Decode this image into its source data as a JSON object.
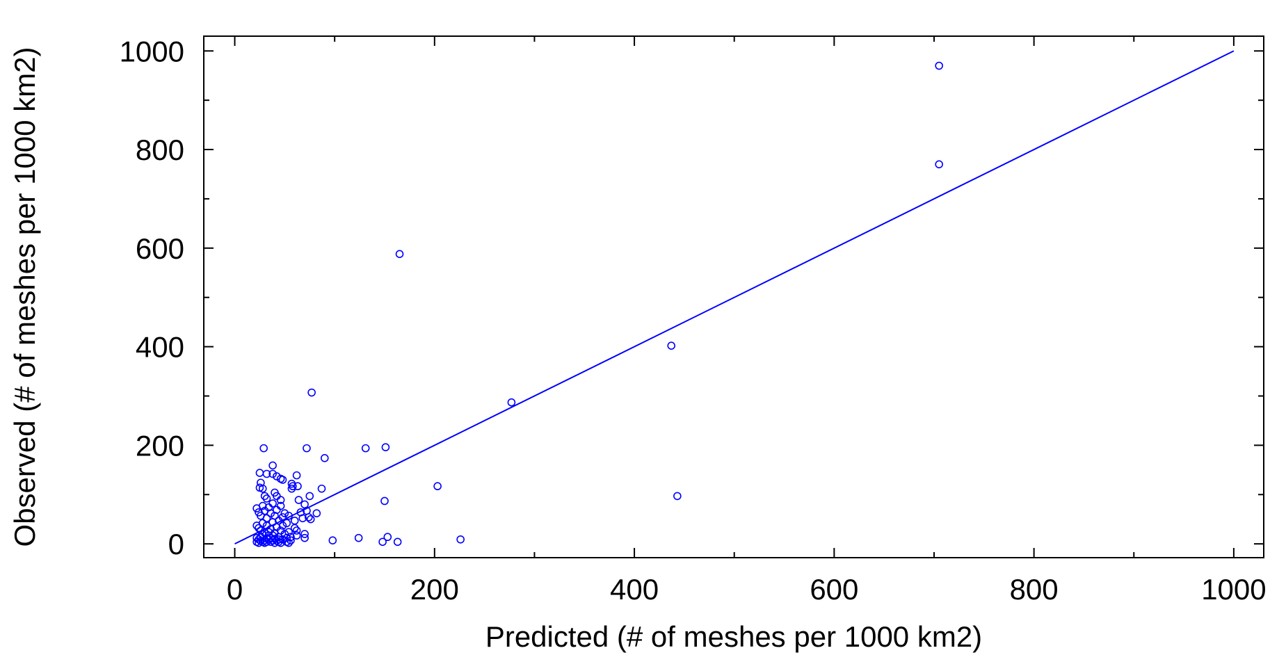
{
  "chart_data": {
    "type": "scatter",
    "title": "",
    "xlabel": "Predicted (# of meshes per 1000 km2)",
    "ylabel": "Observed (# of meshes per 1000 km2)",
    "xlim": [
      -31,
      1030
    ],
    "ylim": [
      -28,
      1030
    ],
    "xticks": [
      0,
      200,
      400,
      600,
      800,
      1000
    ],
    "yticks": [
      0,
      200,
      400,
      600,
      800,
      1000
    ],
    "grid": false,
    "series_color": "#0000ff",
    "reference_line": {
      "x": [
        0,
        1000
      ],
      "y": [
        0,
        1000
      ]
    },
    "points": [
      [
        705,
        970
      ],
      [
        705,
        770
      ],
      [
        165,
        588
      ],
      [
        437,
        402
      ],
      [
        277,
        287
      ],
      [
        443,
        97
      ],
      [
        203,
        117
      ],
      [
        226,
        9
      ],
      [
        77,
        307
      ],
      [
        90,
        174
      ],
      [
        72,
        194
      ],
      [
        131,
        194
      ],
      [
        151,
        196
      ],
      [
        150,
        87
      ],
      [
        153,
        14
      ],
      [
        148,
        4
      ],
      [
        163,
        4
      ],
      [
        124,
        12
      ],
      [
        98,
        7
      ],
      [
        29,
        194
      ],
      [
        25,
        144
      ],
      [
        32,
        142
      ],
      [
        38,
        142
      ],
      [
        42,
        137
      ],
      [
        46,
        132
      ],
      [
        48,
        130
      ],
      [
        38,
        159
      ],
      [
        62,
        139
      ],
      [
        57,
        122
      ],
      [
        58,
        117
      ],
      [
        57,
        112
      ],
      [
        63,
        117
      ],
      [
        26,
        124
      ],
      [
        25,
        114
      ],
      [
        28,
        112
      ],
      [
        87,
        112
      ],
      [
        30,
        97
      ],
      [
        32,
        92
      ],
      [
        40,
        104
      ],
      [
        42,
        97
      ],
      [
        46,
        89
      ],
      [
        64,
        89
      ],
      [
        75,
        97
      ],
      [
        22,
        72
      ],
      [
        24,
        64
      ],
      [
        26,
        57
      ],
      [
        28,
        77
      ],
      [
        30,
        67
      ],
      [
        32,
        52
      ],
      [
        34,
        74
      ],
      [
        36,
        62
      ],
      [
        38,
        82
      ],
      [
        40,
        57
      ],
      [
        42,
        69
      ],
      [
        44,
        47
      ],
      [
        46,
        77
      ],
      [
        48,
        54
      ],
      [
        50,
        62
      ],
      [
        52,
        42
      ],
      [
        54,
        57
      ],
      [
        60,
        47
      ],
      [
        62,
        27
      ],
      [
        66,
        64
      ],
      [
        68,
        52
      ],
      [
        70,
        80
      ],
      [
        72,
        67
      ],
      [
        74,
        54
      ],
      [
        76,
        50
      ],
      [
        82,
        62
      ],
      [
        22,
        37
      ],
      [
        24,
        32
      ],
      [
        26,
        27
      ],
      [
        28,
        42
      ],
      [
        30,
        22
      ],
      [
        32,
        37
      ],
      [
        34,
        17
      ],
      [
        36,
        30
      ],
      [
        38,
        44
      ],
      [
        40,
        22
      ],
      [
        42,
        34
      ],
      [
        44,
        14
      ],
      [
        46,
        27
      ],
      [
        48,
        37
      ],
      [
        50,
        20
      ],
      [
        52,
        12
      ],
      [
        54,
        24
      ],
      [
        56,
        7
      ],
      [
        60,
        32
      ],
      [
        62,
        17
      ],
      [
        70,
        12
      ],
      [
        70,
        20
      ],
      [
        22,
        12
      ],
      [
        22,
        4
      ],
      [
        24,
        9
      ],
      [
        24,
        2
      ],
      [
        26,
        14
      ],
      [
        26,
        6
      ],
      [
        28,
        4
      ],
      [
        28,
        19
      ],
      [
        30,
        7
      ],
      [
        30,
        2
      ],
      [
        32,
        11
      ],
      [
        32,
        4
      ],
      [
        34,
        9
      ],
      [
        34,
        24
      ],
      [
        36,
        4
      ],
      [
        36,
        12
      ],
      [
        38,
        7
      ],
      [
        38,
        17
      ],
      [
        40,
        2
      ],
      [
        40,
        10
      ],
      [
        42,
        6
      ],
      [
        44,
        4
      ],
      [
        44,
        9
      ],
      [
        46,
        2
      ],
      [
        48,
        9
      ],
      [
        52,
        4
      ],
      [
        54,
        2
      ],
      [
        56,
        14
      ]
    ]
  }
}
